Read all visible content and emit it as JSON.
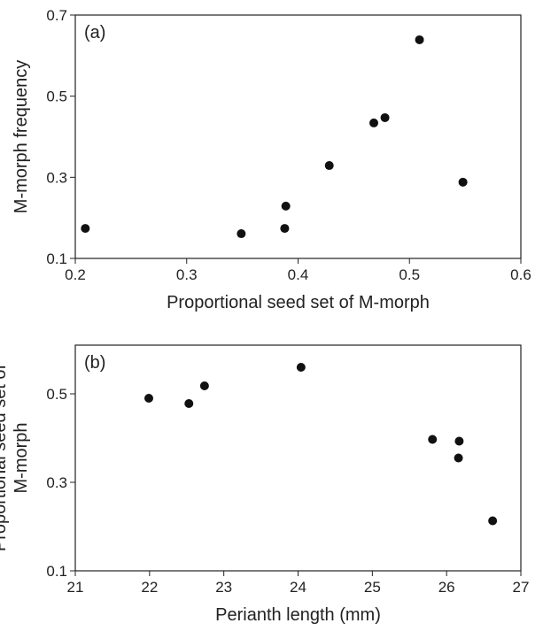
{
  "chart_data": [
    {
      "type": "scatter",
      "annotation": "(a)",
      "xlabel": "Proportional seed set of M-morph",
      "ylabel": [
        "M-morph frequency"
      ],
      "x": [
        0.209,
        0.349,
        0.388,
        0.389,
        0.428,
        0.468,
        0.478,
        0.509,
        0.548
      ],
      "values": [
        0.174,
        0.161,
        0.174,
        0.229,
        0.329,
        0.434,
        0.447,
        0.639,
        0.288
      ],
      "color": "#111111",
      "xlim": [
        0.2,
        0.6
      ],
      "xticks": [
        0.2,
        0.3,
        0.4,
        0.5,
        0.6
      ],
      "ylim": [
        0.1,
        0.7
      ],
      "yticks": [
        0.1,
        0.3,
        0.5,
        0.7
      ]
    },
    {
      "type": "scatter",
      "annotation": "(b)",
      "xlabel": "Perianth length (mm)",
      "ylabel": [
        "Proportional seed set of",
        "M-morph"
      ],
      "x": [
        21.99,
        22.53,
        22.74,
        24.04,
        25.81,
        26.17,
        26.16,
        26.62
      ],
      "values": [
        0.49,
        0.478,
        0.518,
        0.56,
        0.397,
        0.393,
        0.355,
        0.213
      ],
      "color": "#111111",
      "xlim": [
        21,
        27
      ],
      "xticks": [
        21,
        22,
        23,
        24,
        25,
        26,
        27
      ],
      "ylim": [
        0.1,
        0.61
      ],
      "yticks": [
        0.1,
        0.3,
        0.5
      ]
    }
  ]
}
